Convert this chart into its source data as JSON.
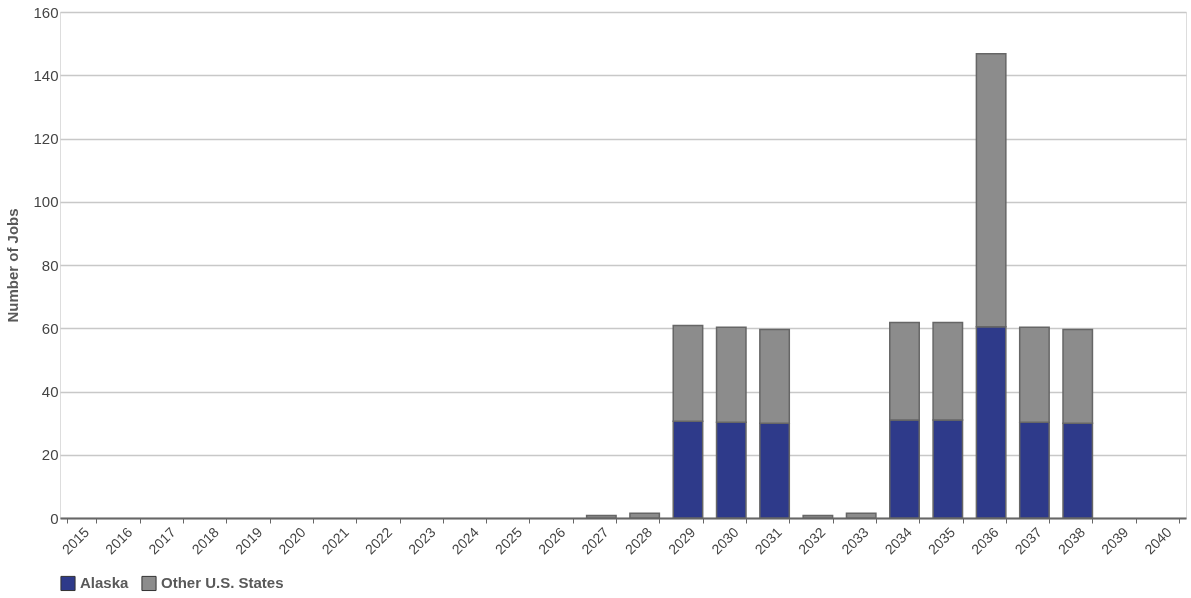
{
  "chart_data": {
    "type": "bar",
    "stacked": true,
    "ylabel": "Number of Jobs",
    "categories": [
      "2015",
      "2016",
      "2017",
      "2018",
      "2019",
      "2020",
      "2021",
      "2022",
      "2023",
      "2024",
      "2025",
      "2026",
      "2027",
      "2028",
      "2029",
      "2030",
      "2031",
      "2032",
      "2033",
      "2034",
      "2035",
      "2036",
      "2037",
      "2038",
      "2039",
      "2040"
    ],
    "series": [
      {
        "name": "Alaska",
        "color": "#2e3a8a",
        "values": [
          null,
          null,
          null,
          null,
          null,
          null,
          null,
          null,
          null,
          null,
          null,
          null,
          null,
          null,
          30.6,
          30.3,
          30,
          null,
          null,
          31,
          31,
          60.5,
          30.3,
          30,
          null,
          null
        ]
      },
      {
        "name": "Other U.S. States",
        "color": "#8c8c8c",
        "values": [
          null,
          null,
          null,
          null,
          null,
          null,
          null,
          null,
          null,
          null,
          null,
          null,
          0.8,
          1.5,
          30.3,
          30,
          29.6,
          0.8,
          1.5,
          30.8,
          30.8,
          86.3,
          30,
          29.6,
          null,
          null
        ]
      }
    ],
    "ylim": [
      0,
      160
    ],
    "yticks": [
      0,
      20,
      40,
      60,
      80,
      100,
      120,
      140,
      160
    ],
    "grid": "y",
    "legend": "bottom"
  }
}
